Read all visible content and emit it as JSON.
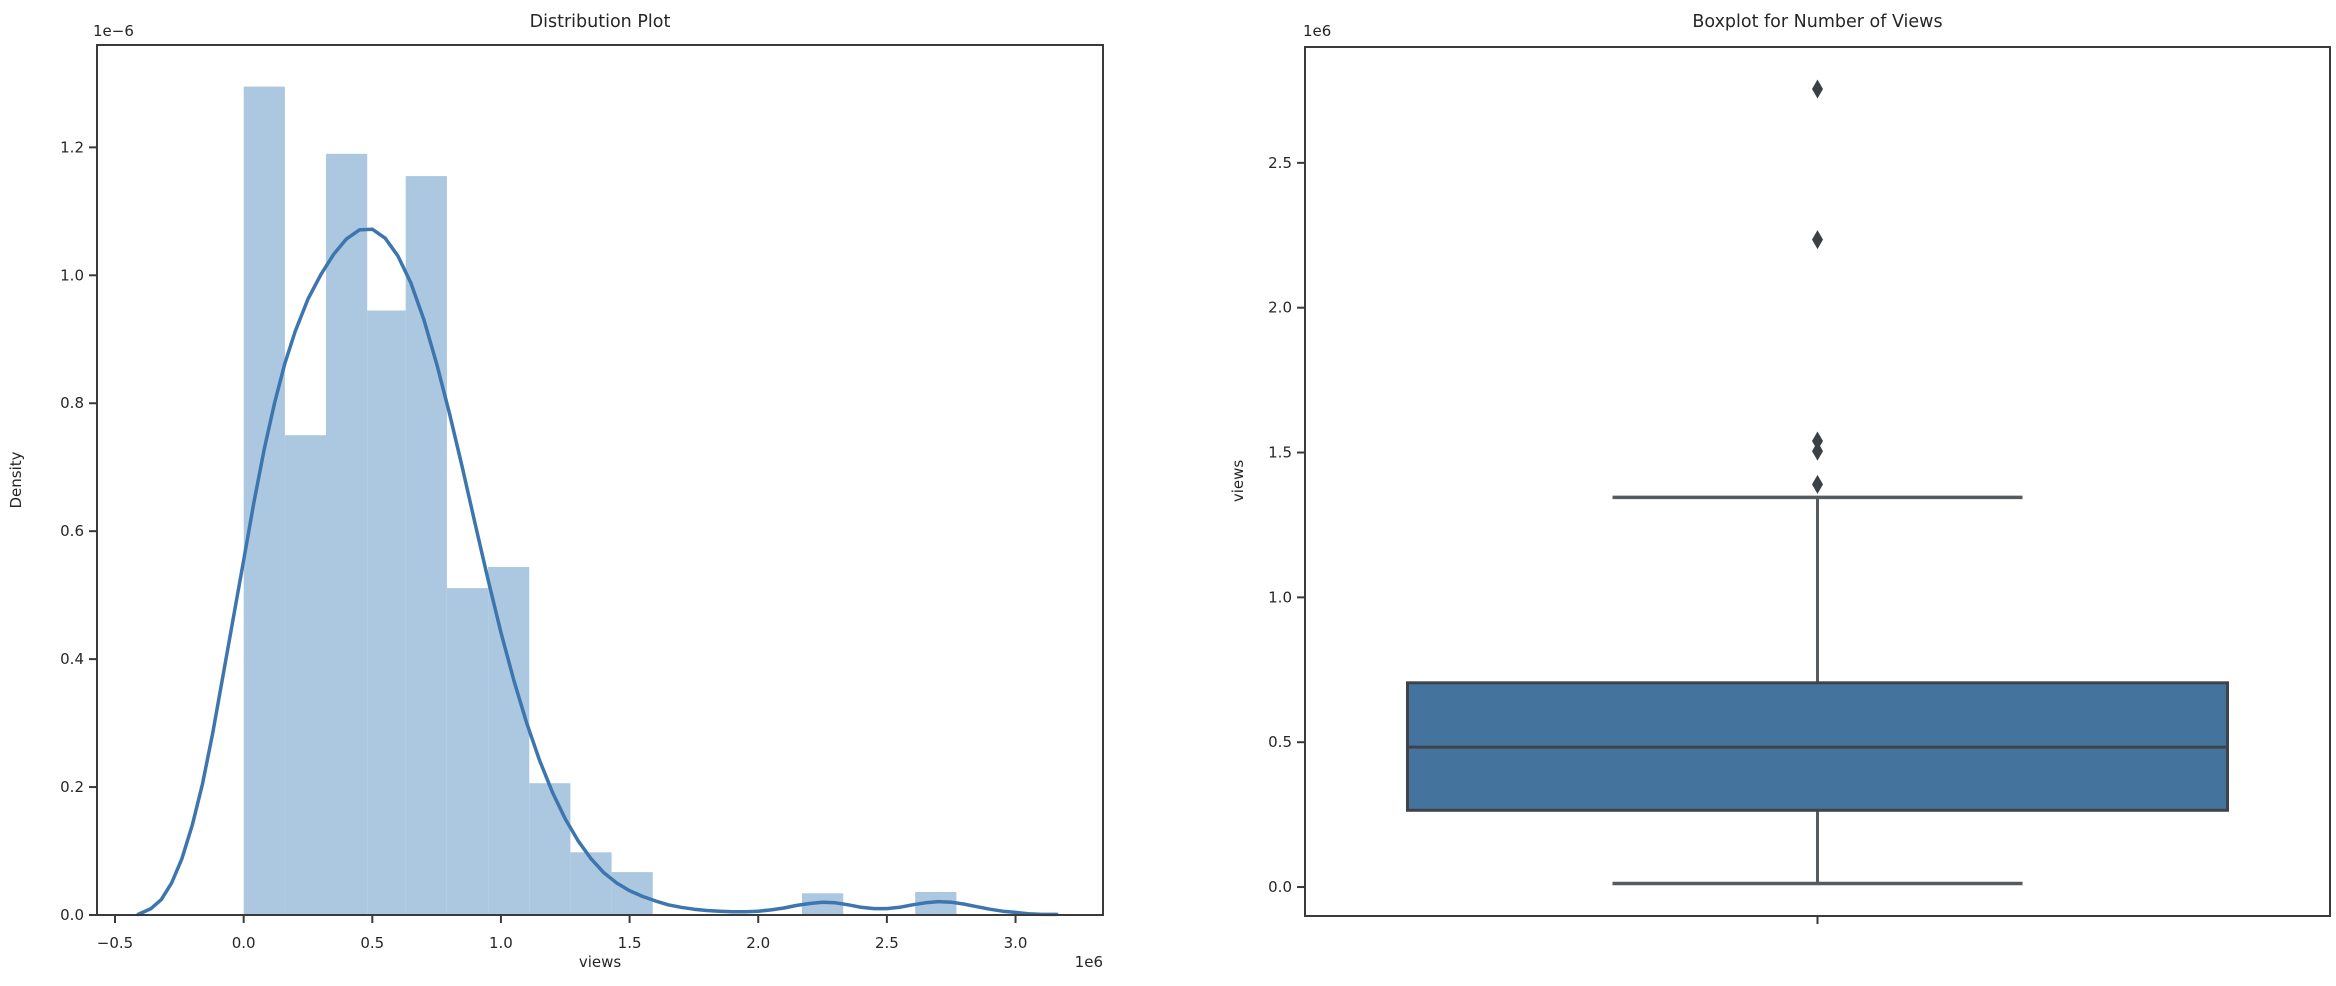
{
  "figure": {
    "background": "#ffffff",
    "text_color": "#262626",
    "spine_color": "#3a3a3a"
  },
  "chart_data": [
    {
      "type": "bar+line",
      "subtype": "seaborn-distplot (histogram with KDE)",
      "title": "Distribution Plot",
      "xlabel": "views",
      "ylabel": "Density",
      "x_offset_label": "1e6",
      "y_offset_label": "1e−6",
      "xlim": [
        -0.57,
        3.34
      ],
      "ylim": [
        0,
        1.36
      ],
      "grid": false,
      "legend": "none",
      "x_ticks": [
        -0.5,
        0.0,
        0.5,
        1.0,
        1.5,
        2.0,
        2.5,
        3.0
      ],
      "x_tick_labels": [
        "−0.5",
        "0.0",
        "0.5",
        "1.0",
        "1.5",
        "2.0",
        "2.5",
        "3.0"
      ],
      "y_ticks": [
        0.0,
        0.2,
        0.4,
        0.6,
        0.8,
        1.0,
        1.2
      ],
      "y_tick_labels": [
        "0.0",
        "0.2",
        "0.4",
        "0.6",
        "0.8",
        "1.0",
        "1.2"
      ],
      "bar_color": "#acc8e0",
      "line_color": "#3d76ae",
      "bars_note": "each bar = [x_start_1e6, x_end_1e6, density_1e-6]",
      "bars": [
        [
          0.0,
          0.16,
          1.295
        ],
        [
          0.16,
          0.32,
          0.75
        ],
        [
          0.32,
          0.48,
          1.19
        ],
        [
          0.48,
          0.63,
          0.945
        ],
        [
          0.63,
          0.79,
          1.155
        ],
        [
          0.79,
          0.95,
          0.511
        ],
        [
          0.95,
          1.11,
          0.544
        ],
        [
          1.11,
          1.27,
          0.206
        ],
        [
          1.27,
          1.43,
          0.098
        ],
        [
          1.43,
          1.59,
          0.067
        ],
        [
          2.17,
          2.33,
          0.034
        ],
        [
          2.61,
          2.77,
          0.036
        ]
      ],
      "kde_note": "KDE curve samples [x_1e6, density_1e-6]",
      "kde": [
        [
          -0.41,
          0.001
        ],
        [
          -0.36,
          0.01
        ],
        [
          -0.32,
          0.024
        ],
        [
          -0.28,
          0.05
        ],
        [
          -0.24,
          0.088
        ],
        [
          -0.2,
          0.14
        ],
        [
          -0.16,
          0.205
        ],
        [
          -0.12,
          0.285
        ],
        [
          -0.08,
          0.375
        ],
        [
          -0.04,
          0.465
        ],
        [
          0,
          0.555
        ],
        [
          0.04,
          0.645
        ],
        [
          0.08,
          0.728
        ],
        [
          0.12,
          0.8
        ],
        [
          0.16,
          0.862
        ],
        [
          0.2,
          0.912
        ],
        [
          0.25,
          0.963
        ],
        [
          0.3,
          1.001
        ],
        [
          0.35,
          1.033
        ],
        [
          0.4,
          1.057
        ],
        [
          0.45,
          1.071
        ],
        [
          0.5,
          1.072
        ],
        [
          0.55,
          1.058
        ],
        [
          0.6,
          1.03
        ],
        [
          0.65,
          0.988
        ],
        [
          0.7,
          0.931
        ],
        [
          0.75,
          0.862
        ],
        [
          0.8,
          0.784
        ],
        [
          0.85,
          0.699
        ],
        [
          0.9,
          0.611
        ],
        [
          0.95,
          0.524
        ],
        [
          1,
          0.442
        ],
        [
          1.05,
          0.367
        ],
        [
          1.1,
          0.3
        ],
        [
          1.15,
          0.242
        ],
        [
          1.2,
          0.192
        ],
        [
          1.25,
          0.15
        ],
        [
          1.3,
          0.116
        ],
        [
          1.35,
          0.088
        ],
        [
          1.4,
          0.066
        ],
        [
          1.45,
          0.05
        ],
        [
          1.5,
          0.038
        ],
        [
          1.55,
          0.029
        ],
        [
          1.6,
          0.022
        ],
        [
          1.65,
          0.016
        ],
        [
          1.7,
          0.012
        ],
        [
          1.75,
          0.009
        ],
        [
          1.8,
          0.007
        ],
        [
          1.85,
          0.006
        ],
        [
          1.9,
          0.005
        ],
        [
          1.95,
          0.005
        ],
        [
          2,
          0.006
        ],
        [
          2.05,
          0.008
        ],
        [
          2.1,
          0.011
        ],
        [
          2.15,
          0.015
        ],
        [
          2.2,
          0.018
        ],
        [
          2.25,
          0.02
        ],
        [
          2.3,
          0.019
        ],
        [
          2.35,
          0.016
        ],
        [
          2.4,
          0.012
        ],
        [
          2.45,
          0.01
        ],
        [
          2.5,
          0.01
        ],
        [
          2.55,
          0.012
        ],
        [
          2.6,
          0.016
        ],
        [
          2.65,
          0.019
        ],
        [
          2.7,
          0.021
        ],
        [
          2.75,
          0.02
        ],
        [
          2.8,
          0.017
        ],
        [
          2.85,
          0.013
        ],
        [
          2.9,
          0.009
        ],
        [
          2.95,
          0.006
        ],
        [
          3,
          0.004
        ],
        [
          3.05,
          0.002
        ],
        [
          3.1,
          0.001
        ],
        [
          3.16,
          0.001
        ]
      ]
    },
    {
      "type": "boxplot",
      "title": "Boxplot for Number of Views",
      "xlabel": "",
      "ylabel": "views",
      "y_offset_label": "1e6",
      "ylim": [
        -0.1,
        2.9
      ],
      "grid": false,
      "legend": "none",
      "y_ticks": [
        0.0,
        0.5,
        1.0,
        1.5,
        2.0,
        2.5
      ],
      "y_tick_labels": [
        "0.0",
        "0.5",
        "1.0",
        "1.5",
        "2.0",
        "2.5"
      ],
      "box_color": "#44739e",
      "edge_color": "#3e4349",
      "whisker_color": "#565b60",
      "flier_color": "#3b4045",
      "values_note": "all values in 1e6 views",
      "box": {
        "whisker_low": 0.012,
        "q1": 0.265,
        "median": 0.483,
        "q3": 0.705,
        "whisker_high": 1.345,
        "outliers": [
          1.39,
          1.505,
          1.54,
          2.235,
          2.755
        ]
      }
    }
  ]
}
